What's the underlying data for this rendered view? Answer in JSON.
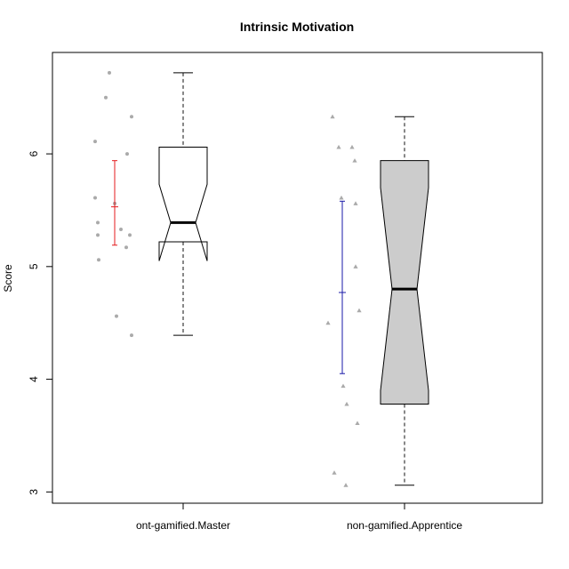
{
  "chart_data": {
    "type": "boxplot",
    "title": "Intrinsic Motivation",
    "xlabel": "",
    "ylabel": "Score",
    "ylim": [
      2.9,
      6.9
    ],
    "yticks": [
      3,
      4,
      5,
      6
    ],
    "grid": false,
    "legend": "none",
    "categories": [
      "ont-gamified.Master",
      "non-gamified.Apprentice"
    ],
    "boxes": [
      {
        "name": "ont-gamified.Master",
        "fill": "#ffffff",
        "whisker_low": 4.39,
        "q1": 5.22,
        "median": 5.39,
        "q3": 6.06,
        "whisker_high": 6.72,
        "notch_low": 5.05,
        "notch_high": 5.73
      },
      {
        "name": "non-gamified.Apprentice",
        "fill": "#cccccc",
        "whisker_low": 3.06,
        "q1": 3.78,
        "median": 4.8,
        "q3": 5.94,
        "whisker_high": 6.33,
        "notch_low": 3.9,
        "notch_high": 5.7
      }
    ],
    "mean_ci": [
      {
        "category": "ont-gamified.Master",
        "mean": 5.53,
        "low": 5.19,
        "high": 5.94,
        "color": "#e41a1c"
      },
      {
        "category": "non-gamified.Apprentice",
        "mean": 4.77,
        "low": 4.05,
        "high": 5.58,
        "color": "#1a1aa8"
      }
    ],
    "points": [
      {
        "category": "ont-gamified.Master",
        "shape": "circle",
        "color": "#aaaaaa",
        "values": [
          6.72,
          6.5,
          6.33,
          6.11,
          6.0,
          5.61,
          5.56,
          5.39,
          5.33,
          5.28,
          5.28,
          5.17,
          5.06,
          4.56,
          4.39
        ]
      },
      {
        "category": "non-gamified.Apprentice",
        "shape": "triangle",
        "color": "#aaaaaa",
        "values": [
          6.33,
          6.06,
          6.06,
          5.94,
          5.61,
          5.56,
          5.0,
          4.61,
          4.5,
          3.94,
          3.78,
          3.61,
          3.17,
          3.06
        ]
      }
    ]
  }
}
